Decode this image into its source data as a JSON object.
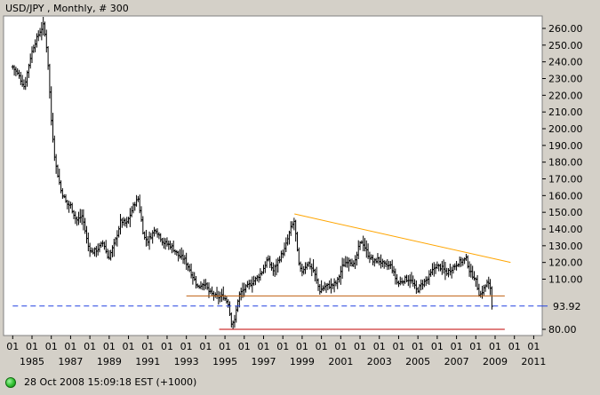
{
  "header": {
    "title": "USD/JPY , Monthly, # 300"
  },
  "status": {
    "text": "28 Oct 2008 15:09:18  EST (+1000)"
  },
  "colors": {
    "background": "#d4d0c8",
    "plot_background": "#ffffff",
    "price_bars": "#000000",
    "trendline": "#ffa500",
    "support_line": "#c06010",
    "low_line": "#c00000",
    "current_price_line": "#2040e0",
    "status_indicator": "#2fbf2f"
  },
  "chart_data": {
    "type": "ohlc",
    "title": "USD/JPY , Monthly, # 300",
    "ylim": [
      75,
      268
    ],
    "y_ticks": [
      80,
      110,
      120,
      130,
      140,
      150,
      160,
      170,
      180,
      190,
      200,
      210,
      220,
      230,
      240,
      250,
      260
    ],
    "y_tick_labels": [
      "80.00",
      "110.00",
      "120.00",
      "130.00",
      "140.00",
      "150.00",
      "160.00",
      "170.00",
      "180.00",
      "190.00",
      "200.00",
      "210.00",
      "220.00",
      "230.00",
      "240.00",
      "250.00",
      "260.00"
    ],
    "x_tick_major_label": "01",
    "year_labels": [
      "1985",
      "1987",
      "1989",
      "1991",
      "1993",
      "1995",
      "1997",
      "1999",
      "2001",
      "2003",
      "2005",
      "2007",
      "2009",
      "2011"
    ],
    "x_range": [
      1984.0,
      2011.6
    ],
    "current_value": 93.92,
    "current_value_label": "93.92",
    "trendline": {
      "from": [
        1998.6,
        149.0
      ],
      "to": [
        2009.8,
        120.0
      ]
    },
    "support_line": {
      "from": [
        1993.0,
        100.0
      ],
      "to": [
        2009.5,
        100.0
      ]
    },
    "low_line": {
      "from": [
        1994.7,
        80.0
      ],
      "to": [
        2009.5,
        80.0
      ]
    },
    "current_price_line": {
      "from": [
        1984.0,
        93.92
      ],
      "to": [
        2011.6,
        93.92
      ]
    },
    "series": [
      {
        "anchors": [
          [
            1984.0,
            237
          ],
          [
            1984.3,
            232
          ],
          [
            1984.6,
            225
          ],
          [
            1984.9,
            242
          ],
          [
            1985.1,
            250
          ],
          [
            1985.4,
            258
          ],
          [
            1985.6,
            262
          ],
          [
            1985.8,
            245
          ],
          [
            1986.0,
            205
          ],
          [
            1986.2,
            180
          ],
          [
            1986.5,
            163
          ],
          [
            1986.8,
            155
          ],
          [
            1987.0,
            154
          ],
          [
            1987.3,
            145
          ],
          [
            1987.6,
            148
          ],
          [
            1987.9,
            130
          ],
          [
            1988.1,
            126
          ],
          [
            1988.4,
            128
          ],
          [
            1988.7,
            132
          ],
          [
            1988.95,
            122
          ],
          [
            1989.3,
            132
          ],
          [
            1989.6,
            145
          ],
          [
            1989.9,
            143
          ],
          [
            1990.3,
            155
          ],
          [
            1990.5,
            158
          ],
          [
            1990.8,
            135
          ],
          [
            1991.0,
            133
          ],
          [
            1991.4,
            140
          ],
          [
            1991.8,
            132
          ],
          [
            1992.2,
            130
          ],
          [
            1992.6,
            124
          ],
          [
            1992.9,
            122
          ],
          [
            1993.2,
            115
          ],
          [
            1993.6,
            105
          ],
          [
            1993.9,
            108
          ],
          [
            1994.2,
            102
          ],
          [
            1994.6,
            99
          ],
          [
            1994.9,
            100
          ],
          [
            1995.2,
            95
          ],
          [
            1995.3,
            84
          ],
          [
            1995.5,
            85
          ],
          [
            1995.7,
            100
          ],
          [
            1995.9,
            103
          ],
          [
            1996.3,
            107
          ],
          [
            1996.6,
            110
          ],
          [
            1996.9,
            114
          ],
          [
            1997.2,
            122
          ],
          [
            1997.5,
            115
          ],
          [
            1997.8,
            122
          ],
          [
            1998.1,
            128
          ],
          [
            1998.4,
            140
          ],
          [
            1998.6,
            145
          ],
          [
            1998.8,
            120
          ],
          [
            1998.95,
            114
          ],
          [
            1999.3,
            120
          ],
          [
            1999.6,
            115
          ],
          [
            1999.9,
            103
          ],
          [
            2000.2,
            106
          ],
          [
            2000.5,
            106
          ],
          [
            2000.8,
            108
          ],
          [
            2001.1,
            118
          ],
          [
            2001.4,
            122
          ],
          [
            2001.7,
            118
          ],
          [
            2001.95,
            130
          ],
          [
            2002.1,
            133
          ],
          [
            2002.4,
            125
          ],
          [
            2002.7,
            120
          ],
          [
            2002.9,
            122
          ],
          [
            2003.3,
            118
          ],
          [
            2003.6,
            118
          ],
          [
            2003.95,
            107
          ],
          [
            2004.3,
            110
          ],
          [
            2004.6,
            110
          ],
          [
            2004.95,
            103
          ],
          [
            2005.2,
            107
          ],
          [
            2005.5,
            110
          ],
          [
            2005.9,
            118
          ],
          [
            2006.2,
            117
          ],
          [
            2006.5,
            114
          ],
          [
            2006.8,
            117
          ],
          [
            2007.1,
            120
          ],
          [
            2007.5,
            122
          ],
          [
            2007.7,
            114
          ],
          [
            2007.95,
            111
          ],
          [
            2008.2,
            100
          ],
          [
            2008.4,
            104
          ],
          [
            2008.6,
            108
          ],
          [
            2008.75,
            105
          ],
          [
            2008.82,
            94
          ]
        ]
      }
    ]
  }
}
